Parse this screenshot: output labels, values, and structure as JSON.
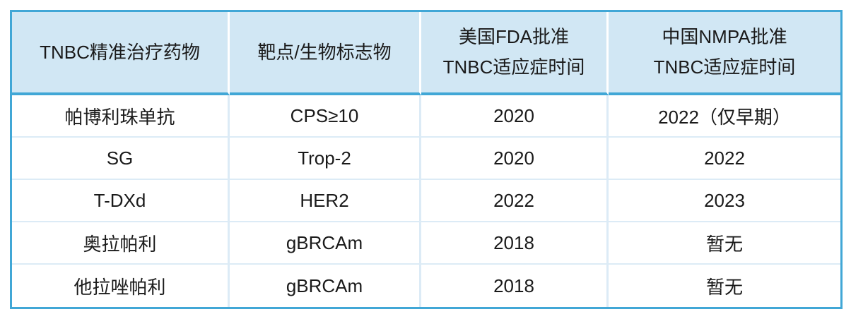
{
  "colors": {
    "accent_border": "#41a7d6",
    "header_background": "#d1e7f4",
    "grid_line": "#dcebf6",
    "text": "#1a1a1a",
    "page_background": "#ffffff"
  },
  "chart_data": {
    "type": "table",
    "columns": [
      {
        "lines": [
          "TNBC精准治疗药物"
        ]
      },
      {
        "lines": [
          "靶点/生物标志物"
        ]
      },
      {
        "lines": [
          "美国FDA批准",
          "TNBC适应症时间"
        ]
      },
      {
        "lines": [
          "中国NMPA批准",
          "TNBC适应症时间"
        ]
      }
    ],
    "rows": [
      [
        "帕博利珠单抗",
        "CPS≥10",
        "2020",
        "2022（仅早期）"
      ],
      [
        "SG",
        "Trop-2",
        "2020",
        "2022"
      ],
      [
        "T-DXd",
        "HER2",
        "2022",
        "2023"
      ],
      [
        "奥拉帕利",
        "gBRCAm",
        "2018",
        "暂无"
      ],
      [
        "他拉唑帕利",
        "gBRCAm",
        "2018",
        "暂无"
      ]
    ]
  }
}
